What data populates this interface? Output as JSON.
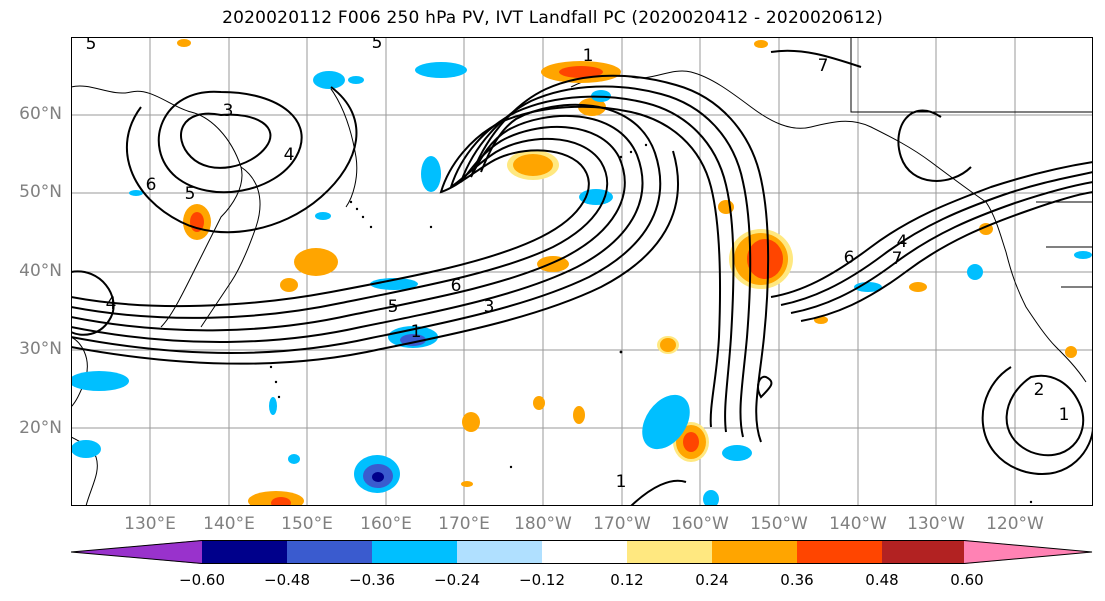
{
  "title": "2020020112 F006 250 hPa PV, IVT Landfall PC (2020020412 - 2020020612)",
  "map": {
    "projection": "PlateCarree",
    "lon_range": "122°E to 112°W",
    "lat_range": "10°N to 70°N",
    "gridlines": true,
    "coastlines": true,
    "lat_labels": [
      "60°N",
      "50°N",
      "40°N",
      "30°N",
      "20°N"
    ],
    "lon_labels": [
      "130°E",
      "140°E",
      "150°E",
      "160°E",
      "170°E",
      "180°W",
      "170°W",
      "160°W",
      "150°W",
      "140°W",
      "130°W",
      "120°W"
    ],
    "contour_labels": [
      "5",
      "5",
      "3",
      "4",
      "6",
      "5",
      "1",
      "7",
      "6",
      "5",
      "3",
      "1",
      "6",
      "4",
      "7",
      "4",
      "2",
      "1",
      "1"
    ]
  },
  "colorbar": {
    "extend": "both",
    "colors": [
      "#9932cc",
      "#00008b",
      "#3a5bcf",
      "#00bfff",
      "#b0e0ff",
      "#ffffff",
      "#ffe880",
      "#ffa500",
      "#ff4500",
      "#b22222",
      "#ff82b4"
    ],
    "tick_labels": [
      "−0.60",
      "−0.48",
      "−0.36",
      "−0.24",
      "−0.12",
      "0.12",
      "0.24",
      "0.36",
      "0.48",
      "0.60"
    ]
  }
}
